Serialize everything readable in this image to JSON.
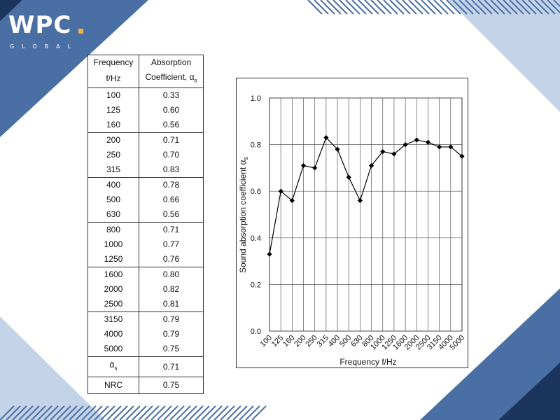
{
  "brand": {
    "name": "WPC",
    "sub": "GLOBAL"
  },
  "table": {
    "header": {
      "col1_line1": "Frequency",
      "col1_line2": "f/Hz",
      "col2_line1": "Absorption",
      "col2_line2": "Coefficient, α",
      "col2_sub": "s"
    },
    "rows": [
      [
        "100",
        "0.33"
      ],
      [
        "125",
        "0.60"
      ],
      [
        "160",
        "0.56"
      ],
      [
        "200",
        "0.71"
      ],
      [
        "250",
        "0.70"
      ],
      [
        "315",
        "0.83"
      ],
      [
        "400",
        "0.78"
      ],
      [
        "500",
        "0.66"
      ],
      [
        "630",
        "0.56"
      ],
      [
        "800",
        "0.71"
      ],
      [
        "1000",
        "0.77"
      ],
      [
        "1250",
        "0.76"
      ],
      [
        "1600",
        "0.80"
      ],
      [
        "2000",
        "0.82"
      ],
      [
        "2500",
        "0.81"
      ],
      [
        "3150",
        "0.79"
      ],
      [
        "4000",
        "0.79"
      ],
      [
        "5000",
        "0.75"
      ]
    ],
    "avg_label": "ᾱ",
    "avg_sub": "s",
    "avg_value": "0.71",
    "nrc_label": "NRC",
    "nrc_value": "0.75"
  },
  "chart_data": {
    "type": "line",
    "categories": [
      "100",
      "125",
      "160",
      "200",
      "250",
      "315",
      "400",
      "500",
      "630",
      "800",
      "1000",
      "1250",
      "1600",
      "2000",
      "2500",
      "3150",
      "4000",
      "5000"
    ],
    "series": [
      {
        "values": [
          0.33,
          0.6,
          0.56,
          0.71,
          0.7,
          0.83,
          0.78,
          0.66,
          0.56,
          0.71,
          0.77,
          0.76,
          0.8,
          0.82,
          0.81,
          0.79,
          0.79,
          0.75
        ]
      }
    ],
    "xlabel": "Frequency f/Hz",
    "ylabel": "Sound absorption coefficient α",
    "ylabel_sub": "s",
    "ylim": [
      0.0,
      1.0
    ],
    "yticks": [
      "0.0",
      "0.2",
      "0.4",
      "0.6",
      "0.8",
      "1.0"
    ],
    "grid": true,
    "marker": "diamond",
    "line_color": "#000000"
  },
  "colors": {
    "blue": "#4a6fa5",
    "navy": "#1c355e",
    "light": "#c3d3e8",
    "gold": "#f2b233"
  }
}
